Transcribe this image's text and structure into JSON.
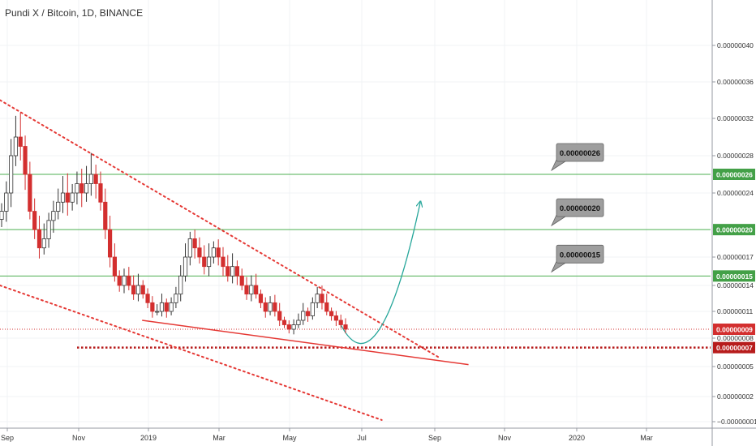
{
  "header": {
    "symbol_title": "Pundi X / Bitcoin, 1D, BINANCE"
  },
  "colors": {
    "up_candle": "#ffffff",
    "down_candle": "#d32f2f",
    "candle_outline": "#333333",
    "level_line": "#4caf50",
    "channel_line": "#e53935",
    "support_line": "#e53935",
    "projection": "#26a69a",
    "price_tag_red": "#d32f2f",
    "price_tag_green": "#43a047",
    "callout_fill": "#9e9e9e"
  },
  "chart_data": {
    "type": "candlestick",
    "title": "Pundi X / Bitcoin, 1D, BINANCE",
    "x_axis": {
      "ticks": [
        "Sep",
        "Nov",
        "2019",
        "Mar",
        "May",
        "Jul",
        "Sep",
        "Nov",
        "2020",
        "Mar"
      ],
      "range": [
        "2018-08-31",
        "2020-04-12"
      ]
    },
    "y_axis": {
      "scale": "log",
      "ticks": [
        "0.00000040",
        "0.00000036",
        "0.00000032",
        "0.00000028",
        "0.00000024",
        "0.00000017",
        "0.00000014",
        "0.00000011",
        "0.00000008",
        "0.00000005",
        "0.00000002",
        "−0.00000001"
      ]
    },
    "series": [
      {
        "daily_close": [
          2.2e-07,
          2.4e-07,
          2.8e-07,
          3e-07,
          2.9e-07,
          2.6e-07,
          2.2e-07,
          2e-07,
          1.8e-07,
          1.9e-07,
          2.1e-07,
          2.2e-07,
          2.3e-07,
          2.4e-07,
          2.3e-07,
          2.4e-07,
          2.5e-07,
          2.4e-07,
          2.5e-07,
          2.6e-07,
          2.5e-07,
          2.3e-07,
          2e-07,
          1.7e-07,
          1.5e-07,
          1.4e-07,
          1.5e-07,
          1.4e-07,
          1.3e-07,
          1.4e-07,
          1.3e-07,
          1.2e-07,
          1.1e-07,
          1.1e-07,
          1.2e-07,
          1.1e-07,
          1.2e-07,
          1.3e-07,
          1.5e-07,
          1.7e-07,
          1.9e-07,
          1.8e-07,
          1.7e-07,
          1.6e-07,
          1.7e-07,
          1.8e-07,
          1.7e-07,
          1.6e-07,
          1.5e-07,
          1.6e-07,
          1.5e-07,
          1.4e-07,
          1.3e-07,
          1.4e-07,
          1.3e-07,
          1.2e-07,
          1.1e-07,
          1.2e-07,
          1.1e-07,
          1e-07,
          9.5e-08,
          9e-08,
          9.5e-08,
          1e-07,
          1.1e-07,
          1.05e-07,
          1.2e-07,
          1.3e-07,
          1.2e-07,
          1.1e-07,
          1.05e-07,
          1e-07,
          9.5e-08,
          9e-08
        ]
      }
    ],
    "horizontal_levels": [
      {
        "label": "0.00000026",
        "value": 2.6e-07
      },
      {
        "label": "0.00000020",
        "value": 2e-07
      },
      {
        "label": "0.00000015",
        "value": 1.5e-07
      }
    ],
    "price_tags": [
      {
        "label": "0.00000026",
        "value": 2.6e-07,
        "kind": "level"
      },
      {
        "label": "0.00000020",
        "value": 2e-07,
        "kind": "level"
      },
      {
        "label": "0.00000015",
        "value": 1.5e-07,
        "kind": "level"
      },
      {
        "label": "0.00000009",
        "value": 9e-08,
        "kind": "last"
      },
      {
        "label": "0.00000007",
        "value": 7e-08,
        "kind": "support"
      }
    ],
    "callouts": [
      "0.00000026",
      "0.00000020",
      "0.00000015"
    ],
    "support_level": {
      "value": 7e-08
    },
    "last_price": {
      "value": 9e-08
    },
    "drawings": {
      "channel_upper": [
        [
          "2018-08-31",
          3.4e-07
        ],
        [
          "2019-08-30",
          6e-08
        ]
      ],
      "channel_lower": [
        [
          "2018-08-31",
          1.4e-07
        ],
        [
          "2019-07-14",
          -8e-09
        ]
      ],
      "support_trend": [
        [
          "2018-12-27",
          1e-07
        ],
        [
          "2019-09-24",
          5.2e-08
        ]
      ],
      "projection_curve": [
        [
          "2019-06-10",
          9.5e-08
        ],
        [
          "2019-06-30",
          7.1e-08
        ],
        [
          "2019-07-23",
          1.05e-07
        ],
        [
          "2019-08-15",
          2.3e-07
        ]
      ]
    }
  }
}
